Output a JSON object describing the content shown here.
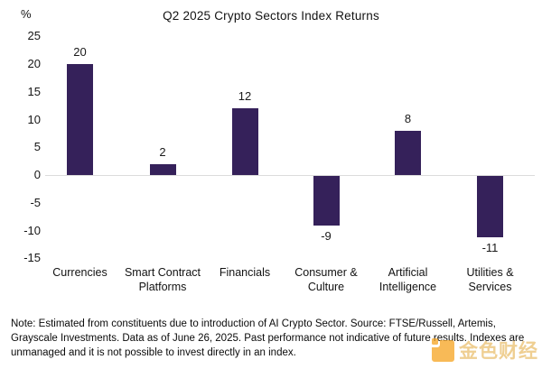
{
  "chart_data": {
    "type": "bar",
    "title": "Q2 2025 Crypto Sectors Index Returns",
    "ylabel": "%",
    "xlabel": "",
    "categories": [
      "Currencies",
      "Smart Contract Platforms",
      "Financials",
      "Consumer & Culture",
      "Artificial Intelligence",
      "Utilities & Services"
    ],
    "values": [
      20,
      2,
      12,
      -9,
      8,
      -11
    ],
    "yticks": [
      25,
      20,
      15,
      10,
      5,
      0,
      -5,
      -10,
      -15
    ],
    "ylim": [
      -15,
      25
    ],
    "grid": false,
    "legend": "none",
    "bar_color": "#35215A",
    "zero_line_color": "#DCDCDC"
  },
  "footnote": "Note: Estimated from constituents due to introduction of AI Crypto Sector. Source: FTSE/Russell, Artemis, Grayscale Investments. Data as of June 26, 2025. Past performance not indicative of future results. Indexes are unmanaged and it is not possible to invest directly in an index.",
  "watermark": {
    "text": "金色财经",
    "color": "#E2A83C"
  }
}
